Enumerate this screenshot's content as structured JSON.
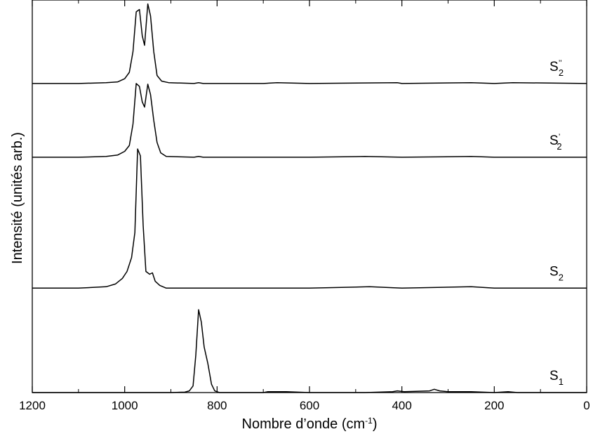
{
  "chart_data": {
    "type": "line",
    "xlabel": "Nombre d’onde (cm",
    "xlabel_sup": "-1",
    "xlabel_end": ")",
    "ylabel": "Intensité (unités arb.)",
    "xlim": [
      1200,
      0
    ],
    "x_reversed": true,
    "y_ticks_shown": false,
    "grid": false,
    "x_ticks": [
      "1200",
      "1000",
      "800",
      "600",
      "400",
      "200",
      "0"
    ],
    "x_tick_values": [
      1200,
      1000,
      800,
      600,
      400,
      200,
      0
    ],
    "series": [
      {
        "name": "S1",
        "label_base": "S",
        "label_sup": "",
        "label_sub": "1",
        "baseline": 0.0,
        "points": [
          [
            1200,
            0
          ],
          [
            1000,
            0
          ],
          [
            900,
            0
          ],
          [
            870,
            0.005
          ],
          [
            860,
            0.02
          ],
          [
            852,
            0.08
          ],
          [
            846,
            0.45
          ],
          [
            840,
            1.0
          ],
          [
            834,
            0.85
          ],
          [
            828,
            0.55
          ],
          [
            820,
            0.35
          ],
          [
            812,
            0.1
          ],
          [
            805,
            0.02
          ],
          [
            795,
            0
          ],
          [
            700,
            0
          ],
          [
            690,
            0.01
          ],
          [
            650,
            0.01
          ],
          [
            600,
            0
          ],
          [
            480,
            0
          ],
          [
            420,
            0.01
          ],
          [
            410,
            0.02
          ],
          [
            395,
            0.01
          ],
          [
            340,
            0.02
          ],
          [
            330,
            0.04
          ],
          [
            318,
            0.02
          ],
          [
            300,
            0.01
          ],
          [
            250,
            0.01
          ],
          [
            200,
            0
          ],
          [
            170,
            0.01
          ],
          [
            150,
            0
          ],
          [
            0,
            0
          ]
        ]
      },
      {
        "name": "S2",
        "label_base": "S",
        "label_sup": "",
        "label_sub": "2",
        "baseline": 1.26,
        "points": [
          [
            1200,
            0
          ],
          [
            1100,
            0
          ],
          [
            1040,
            0.01
          ],
          [
            1020,
            0.03
          ],
          [
            1005,
            0.07
          ],
          [
            995,
            0.12
          ],
          [
            985,
            0.22
          ],
          [
            978,
            0.4
          ],
          [
            972,
            1.0
          ],
          [
            966,
            0.95
          ],
          [
            960,
            0.45
          ],
          [
            954,
            0.12
          ],
          [
            946,
            0.1
          ],
          [
            940,
            0.11
          ],
          [
            934,
            0.05
          ],
          [
            924,
            0.02
          ],
          [
            910,
            0
          ],
          [
            800,
            0
          ],
          [
            700,
            0
          ],
          [
            600,
            0
          ],
          [
            470,
            0.01
          ],
          [
            400,
            0
          ],
          [
            250,
            0.01
          ],
          [
            200,
            0
          ],
          [
            0,
            0
          ]
        ]
      },
      {
        "name": "S'2",
        "label_base": "S",
        "label_sup": "’",
        "label_sub": "2",
        "baseline": 2.84,
        "points": [
          [
            1200,
            0
          ],
          [
            1100,
            0
          ],
          [
            1040,
            0.01
          ],
          [
            1015,
            0.03
          ],
          [
            1000,
            0.08
          ],
          [
            990,
            0.16
          ],
          [
            982,
            0.45
          ],
          [
            975,
            1.0
          ],
          [
            968,
            0.96
          ],
          [
            962,
            0.75
          ],
          [
            957,
            0.68
          ],
          [
            950,
            0.99
          ],
          [
            944,
            0.85
          ],
          [
            937,
            0.5
          ],
          [
            930,
            0.2
          ],
          [
            922,
            0.06
          ],
          [
            910,
            0.01
          ],
          [
            850,
            0
          ],
          [
            840,
            0.01
          ],
          [
            830,
            0
          ],
          [
            700,
            0
          ],
          [
            600,
            0
          ],
          [
            480,
            0.01
          ],
          [
            400,
            0
          ],
          [
            250,
            0.01
          ],
          [
            200,
            0
          ],
          [
            0,
            0
          ]
        ]
      },
      {
        "name": "S''2",
        "label_base": "S",
        "label_sup": "’’",
        "label_sub": "2",
        "baseline": 3.73,
        "points": [
          [
            1200,
            0
          ],
          [
            1100,
            0
          ],
          [
            1040,
            0.01
          ],
          [
            1015,
            0.02
          ],
          [
            1000,
            0.06
          ],
          [
            990,
            0.14
          ],
          [
            982,
            0.4
          ],
          [
            975,
            0.9
          ],
          [
            968,
            0.93
          ],
          [
            962,
            0.6
          ],
          [
            957,
            0.48
          ],
          [
            950,
            1.0
          ],
          [
            944,
            0.85
          ],
          [
            937,
            0.4
          ],
          [
            930,
            0.1
          ],
          [
            920,
            0.03
          ],
          [
            905,
            0.01
          ],
          [
            850,
            0
          ],
          [
            840,
            0.01
          ],
          [
            830,
            0
          ],
          [
            700,
            0
          ],
          [
            670,
            0.01
          ],
          [
            600,
            0
          ],
          [
            410,
            0.01
          ],
          [
            400,
            0
          ],
          [
            250,
            0.01
          ],
          [
            200,
            0
          ],
          [
            160,
            0.01
          ],
          [
            0,
            0
          ]
        ]
      }
    ]
  }
}
